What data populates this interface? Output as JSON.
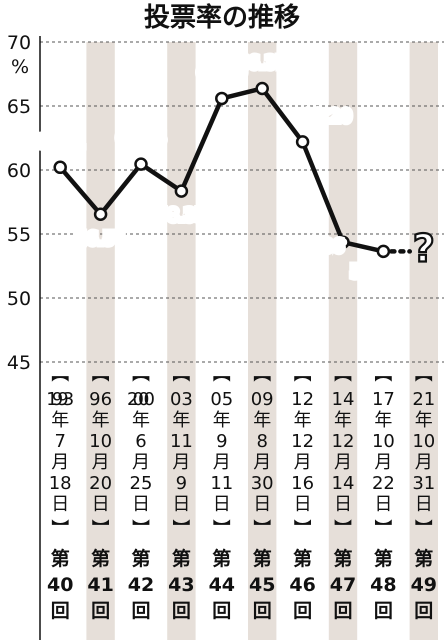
{
  "chart_data": {
    "type": "line",
    "title": "投票率の推移",
    "unit": "%",
    "ylim": [
      45,
      70
    ],
    "yticks": [
      70,
      65,
      60,
      55,
      50,
      45
    ],
    "grid": "horizontal-dashed",
    "categories": [
      "第40回",
      "第41回",
      "第42回",
      "第43回",
      "第44回",
      "第45回",
      "第46回",
      "第47回",
      "第48回",
      "第49回"
    ],
    "dates": [
      [
        "1993",
        "年",
        "7",
        "月",
        "18",
        "日"
      ],
      [
        "96",
        "年",
        "10",
        "月",
        "20",
        "日"
      ],
      [
        "2000",
        "年",
        "6",
        "月",
        "25",
        "日"
      ],
      [
        "03",
        "年",
        "11",
        "月",
        "9",
        "日"
      ],
      [
        "05",
        "年",
        "9",
        "月",
        "11",
        "日"
      ],
      [
        "09",
        "年",
        "8",
        "月",
        "30",
        "日"
      ],
      [
        "12",
        "年",
        "12",
        "月",
        "16",
        "日"
      ],
      [
        "14",
        "年",
        "12",
        "月",
        "14",
        "日"
      ],
      [
        "17",
        "年",
        "10",
        "月",
        "22",
        "日"
      ],
      [
        "21",
        "年",
        "10",
        "月",
        "31",
        "日"
      ]
    ],
    "sessions": [
      [
        "第",
        "40",
        "回"
      ],
      [
        "第",
        "41",
        "回"
      ],
      [
        "第",
        "42",
        "回"
      ],
      [
        "第",
        "43",
        "回"
      ],
      [
        "第",
        "44",
        "回"
      ],
      [
        "第",
        "45",
        "回"
      ],
      [
        "第",
        "46",
        "回"
      ],
      [
        "第",
        "47",
        "回"
      ],
      [
        "第",
        "48",
        "回"
      ],
      [
        "第",
        "49",
        "回"
      ]
    ],
    "series": [
      {
        "values": [
          60.21,
          56.54,
          60.46,
          58.35,
          65.59,
          66.37,
          62.2,
          54.36,
          53.64,
          null
        ],
        "labels": [
          "60.21",
          "56.54",
          "60.46",
          "58.35",
          "65.59",
          "66.37",
          "62.20",
          "54.36",
          "53.64",
          ""
        ]
      }
    ],
    "unknown_marker": "?",
    "colors": {
      "line": "#111111",
      "band": "#e6dfd9",
      "grid": "#555555"
    }
  }
}
